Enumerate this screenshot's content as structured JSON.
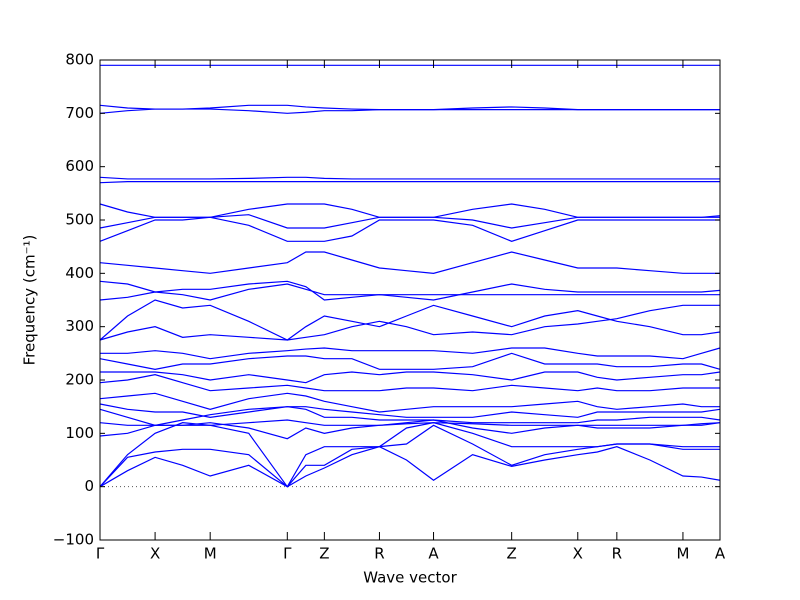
{
  "chart_data": {
    "type": "line",
    "xlabel": "Wave vector",
    "ylabel": "Frequency (cm⁻¹)",
    "x": [
      0,
      27.5,
      55,
      82.5,
      110,
      148.5,
      187,
      205.5,
      224,
      251.5,
      279,
      306,
      333,
      372,
      411,
      444,
      477,
      496.5,
      516,
      549,
      582,
      600.5,
      619
    ],
    "xlim": [
      0,
      619
    ],
    "xticks": [
      {
        "value": 0,
        "label": "Γ"
      },
      {
        "value": 55,
        "label": "X"
      },
      {
        "value": 110,
        "label": "M"
      },
      {
        "value": 187,
        "label": "Γ"
      },
      {
        "value": 224,
        "label": "Z"
      },
      {
        "value": 279,
        "label": "R"
      },
      {
        "value": 333,
        "label": "A"
      },
      {
        "value": 411,
        "label": "Z"
      },
      {
        "value": 477,
        "label": "X"
      },
      {
        "value": 516,
        "label": "R"
      },
      {
        "value": 582,
        "label": "M"
      },
      {
        "value": 619,
        "label": "A"
      }
    ],
    "ylim": [
      -100,
      800
    ],
    "yticks": [
      {
        "value": -100,
        "label": "−100"
      },
      0,
      100,
      200,
      300,
      400,
      500,
      600,
      700,
      800
    ],
    "series": [
      {
        "color": "#0000ff",
        "values": [
          0,
          30,
          55,
          40,
          20,
          40,
          0,
          20,
          35,
          60,
          75,
          50,
          12,
          60,
          38,
          50,
          60,
          65,
          75,
          50,
          20,
          18,
          12
        ]
      },
      {
        "color": "#0000ff",
        "values": [
          0,
          55,
          65,
          70,
          70,
          60,
          0,
          40,
          40,
          70,
          75,
          80,
          115,
          80,
          40,
          60,
          70,
          75,
          80,
          80,
          70,
          70,
          70
        ]
      },
      {
        "color": "#0000ff",
        "values": [
          0,
          60,
          100,
          120,
          115,
          100,
          0,
          60,
          75,
          75,
          75,
          110,
          120,
          100,
          75,
          75,
          75,
          75,
          80,
          80,
          75,
          75,
          75
        ]
      },
      {
        "color": "#0000ff",
        "values": [
          95,
          100,
          115,
          115,
          120,
          110,
          90,
          110,
          100,
          110,
          115,
          120,
          125,
          110,
          100,
          110,
          115,
          110,
          110,
          110,
          115,
          115,
          120
        ]
      },
      {
        "color": "#0000ff",
        "values": [
          120,
          115,
          115,
          115,
          115,
          120,
          125,
          120,
          115,
          115,
          115,
          118,
          120,
          118,
          115,
          115,
          115,
          115,
          115,
          115,
          115,
          118,
          120
        ]
      },
      {
        "color": "#0000ff",
        "values": [
          145,
          130,
          115,
          125,
          135,
          145,
          150,
          145,
          130,
          130,
          125,
          125,
          125,
          120,
          120,
          120,
          120,
          125,
          125,
          130,
          130,
          130,
          125
        ]
      },
      {
        "color": "#0000ff",
        "values": [
          155,
          145,
          140,
          140,
          130,
          140,
          150,
          150,
          145,
          140,
          135,
          130,
          130,
          130,
          140,
          135,
          130,
          140,
          140,
          140,
          140,
          140,
          145
        ]
      },
      {
        "color": "#0000ff",
        "values": [
          165,
          170,
          175,
          160,
          145,
          165,
          175,
          170,
          160,
          150,
          140,
          145,
          150,
          150,
          150,
          155,
          160,
          150,
          145,
          150,
          155,
          150,
          150
        ]
      },
      {
        "color": "#0000ff",
        "values": [
          195,
          200,
          210,
          195,
          180,
          185,
          190,
          185,
          180,
          180,
          180,
          185,
          185,
          180,
          190,
          185,
          180,
          185,
          180,
          180,
          185,
          185,
          185
        ]
      },
      {
        "color": "#0000ff",
        "values": [
          215,
          215,
          215,
          210,
          200,
          210,
          200,
          195,
          210,
          215,
          210,
          215,
          215,
          210,
          200,
          215,
          215,
          205,
          200,
          205,
          210,
          210,
          215
        ]
      },
      {
        "color": "#0000ff",
        "values": [
          240,
          230,
          220,
          230,
          230,
          240,
          245,
          245,
          240,
          240,
          220,
          220,
          220,
          225,
          250,
          230,
          230,
          230,
          225,
          225,
          230,
          230,
          220
        ]
      },
      {
        "color": "#0000ff",
        "values": [
          250,
          250,
          255,
          250,
          240,
          250,
          255,
          258,
          260,
          255,
          255,
          255,
          255,
          250,
          260,
          260,
          250,
          245,
          245,
          245,
          240,
          250,
          260
        ]
      },
      {
        "color": "#0000ff",
        "values": [
          275,
          290,
          300,
          280,
          285,
          280,
          275,
          280,
          285,
          300,
          310,
          300,
          285,
          290,
          285,
          300,
          305,
          310,
          315,
          330,
          340,
          340,
          340
        ]
      },
      {
        "color": "#0000ff",
        "values": [
          275,
          320,
          350,
          335,
          340,
          310,
          275,
          300,
          320,
          310,
          300,
          320,
          340,
          320,
          300,
          320,
          330,
          320,
          310,
          300,
          285,
          285,
          290
        ]
      },
      {
        "color": "#0000ff",
        "values": [
          350,
          355,
          365,
          360,
          350,
          370,
          380,
          370,
          360,
          360,
          360,
          360,
          360,
          360,
          360,
          360,
          360,
          360,
          360,
          360,
          360,
          360,
          360
        ]
      },
      {
        "color": "#0000ff",
        "values": [
          385,
          380,
          365,
          370,
          370,
          380,
          385,
          375,
          350,
          355,
          360,
          355,
          350,
          365,
          380,
          370,
          365,
          365,
          365,
          365,
          365,
          365,
          368
        ]
      },
      {
        "color": "#0000ff",
        "values": [
          420,
          415,
          410,
          405,
          400,
          410,
          420,
          440,
          440,
          425,
          410,
          405,
          400,
          420,
          440,
          425,
          410,
          410,
          410,
          405,
          400,
          400,
          400
        ]
      },
      {
        "color": "#0000ff",
        "values": [
          460,
          480,
          500,
          500,
          505,
          490,
          460,
          460,
          460,
          470,
          500,
          500,
          500,
          490,
          460,
          480,
          500,
          500,
          500,
          500,
          500,
          500,
          500
        ]
      },
      {
        "color": "#0000ff",
        "values": [
          485,
          495,
          505,
          505,
          505,
          510,
          485,
          485,
          485,
          495,
          505,
          505,
          505,
          500,
          485,
          495,
          505,
          505,
          505,
          505,
          505,
          505,
          505
        ]
      },
      {
        "color": "#0000ff",
        "values": [
          530,
          515,
          505,
          505,
          505,
          520,
          530,
          530,
          530,
          520,
          505,
          505,
          505,
          520,
          530,
          520,
          505,
          505,
          505,
          505,
          505,
          505,
          508
        ]
      },
      {
        "color": "#0000ff",
        "values": [
          570,
          572,
          572,
          572,
          572,
          572,
          572,
          572,
          572,
          572,
          572,
          572,
          572,
          572,
          572,
          572,
          572,
          572,
          572,
          572,
          572,
          572,
          572
        ]
      },
      {
        "color": "#0000ff",
        "values": [
          580,
          577,
          577,
          577,
          577,
          578,
          580,
          580,
          578,
          577,
          577,
          577,
          577,
          577,
          577,
          577,
          577,
          577,
          577,
          577,
          577,
          577,
          577
        ]
      },
      {
        "color": "#0000ff",
        "values": [
          700,
          705,
          708,
          708,
          708,
          705,
          700,
          702,
          705,
          705,
          707,
          707,
          707,
          707,
          707,
          707,
          707,
          707,
          707,
          707,
          707,
          707,
          707
        ]
      },
      {
        "color": "#0000ff",
        "values": [
          715,
          710,
          708,
          708,
          710,
          715,
          715,
          712,
          710,
          708,
          707,
          707,
          707,
          710,
          712,
          710,
          707,
          707,
          707,
          707,
          707,
          707,
          707
        ]
      },
      {
        "color": "#0000ff",
        "values": [
          790,
          790,
          790,
          790,
          790,
          790,
          790,
          790,
          790,
          790,
          790,
          790,
          790,
          790,
          790,
          790,
          790,
          790,
          790,
          790,
          790,
          790,
          790
        ]
      }
    ]
  }
}
